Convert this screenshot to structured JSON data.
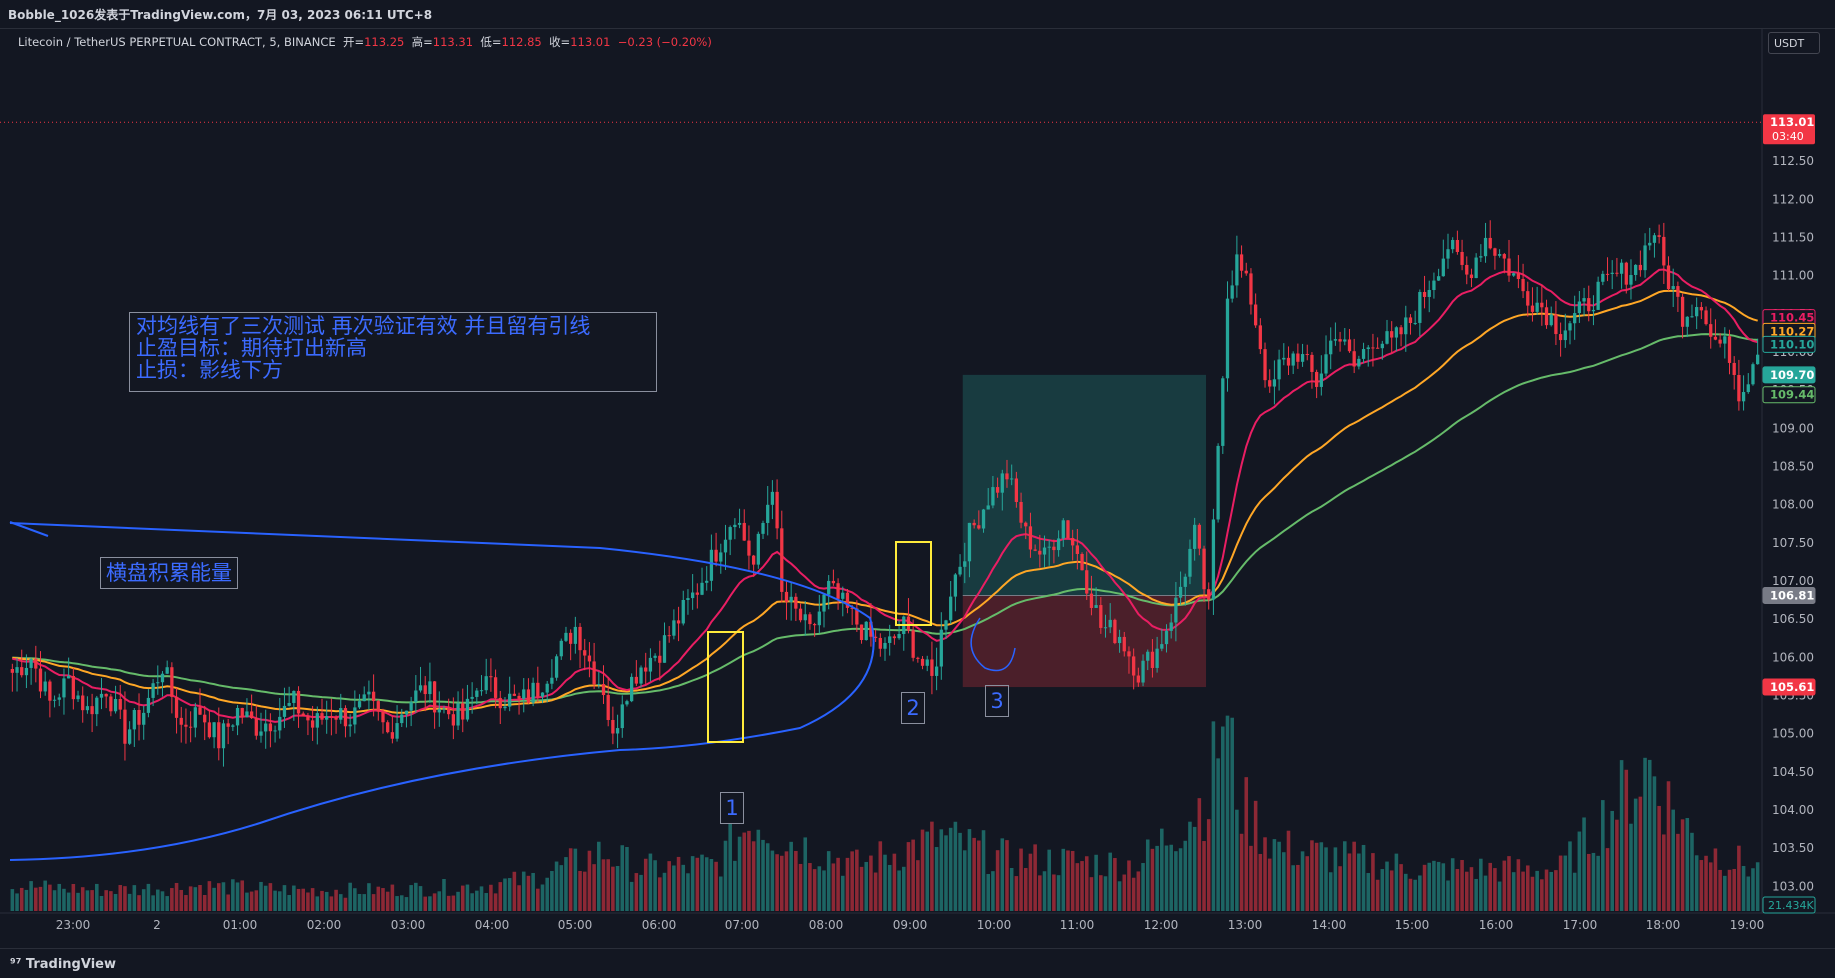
{
  "header": {
    "title": "Bobble_1026发表于TradingView.com，7月 03, 2023 06:11 UTC+8"
  },
  "legend": {
    "symbol": "Litecoin / TetherUS PERPETUAL CONTRACT, 5, BINANCE",
    "open_label": "开=",
    "open": "113.25",
    "high_label": "高=",
    "high": "113.31",
    "low_label": "低=",
    "low": "112.85",
    "close_label": "收=",
    "close": "113.01",
    "change": "−0.23 (−0.20%)"
  },
  "currency": "USDT",
  "annotations": {
    "main_note": [
      "对均线有了三次测试 再次验证有效 并且留有引线",
      "止盈目标：期待打出新高",
      "止损：影线下方"
    ],
    "range_note": "横盘积累能量",
    "labels": [
      "1",
      "2",
      "3"
    ]
  },
  "footer": {
    "brand": "TradingView"
  },
  "colors": {
    "background": "#131722",
    "up": "#26a69a",
    "down": "#f23645",
    "ma_fast": "#e91e63",
    "ma_mid": "#ffa726",
    "ma_slow": "#66bb6a",
    "vwap_band": "#2962ff",
    "note_text": "#2962ff",
    "highlight_box": "#ffeb3b"
  },
  "chart_data": {
    "type": "candlestick",
    "xlabel": "",
    "ylabel": "",
    "x_ticks": [
      "23:00",
      "2",
      "01:00",
      "02:00",
      "03:00",
      "04:00",
      "05:00",
      "06:00",
      "07:00",
      "08:00",
      "09:00",
      "10:00",
      "11:00",
      "12:00",
      "13:00",
      "14:00",
      "15:00",
      "16:00",
      "17:00",
      "18:00",
      "19:00"
    ],
    "y_ticks": [
      "103.00",
      "103.50",
      "104.00",
      "104.50",
      "105.00",
      "105.50",
      "106.00",
      "106.50",
      "107.00",
      "107.50",
      "108.00",
      "108.50",
      "109.00",
      "109.50",
      "110.00",
      "110.50",
      "111.00",
      "111.50",
      "112.00",
      "112.50"
    ],
    "ylim": [
      102.65,
      113.55
    ],
    "last_price": {
      "value": "113.01",
      "countdown": "03:40"
    },
    "price_labels": [
      {
        "value": "110.45",
        "color": "#e91e63"
      },
      {
        "value": "110.27",
        "color": "#ffa726"
      },
      {
        "value": "110.10",
        "color": "#26a69a"
      },
      {
        "value": "109.70",
        "color": "#26a69a"
      },
      {
        "value": "109.44",
        "color": "#66bb6a"
      },
      {
        "value": "106.81",
        "color": "#787b86"
      },
      {
        "value": "105.61",
        "color": "#f23645"
      }
    ],
    "volume_label": "21.434K",
    "position": {
      "entry": 106.81,
      "target": 109.7,
      "stop": 105.61
    },
    "anchors": [
      [
        0,
        105.8
      ],
      [
        4,
        106.0
      ],
      [
        8,
        105.4
      ],
      [
        12,
        105.7
      ],
      [
        16,
        105.3
      ],
      [
        20,
        105.6
      ],
      [
        24,
        105.0
      ],
      [
        28,
        105.3
      ],
      [
        32,
        105.9
      ],
      [
        36,
        105.1
      ],
      [
        40,
        105.3
      ],
      [
        44,
        104.9
      ],
      [
        48,
        105.3
      ],
      [
        52,
        105.1
      ],
      [
        56,
        105.2
      ],
      [
        60,
        105.4
      ],
      [
        64,
        105.1
      ],
      [
        68,
        105.3
      ],
      [
        72,
        105.2
      ],
      [
        76,
        105.4
      ],
      [
        80,
        105.0
      ],
      [
        84,
        105.4
      ],
      [
        88,
        105.6
      ],
      [
        92,
        105.3
      ],
      [
        96,
        105.2
      ],
      [
        100,
        105.7
      ],
      [
        104,
        105.5
      ],
      [
        108,
        105.4
      ],
      [
        112,
        105.6
      ],
      [
        116,
        106.0
      ],
      [
        120,
        106.4
      ],
      [
        124,
        105.8
      ],
      [
        126,
        105.6
      ],
      [
        128,
        104.9
      ],
      [
        130,
        105.5
      ],
      [
        134,
        105.9
      ],
      [
        138,
        106.1
      ],
      [
        142,
        106.5
      ],
      [
        146,
        106.9
      ],
      [
        150,
        107.4
      ],
      [
        154,
        107.9
      ],
      [
        158,
        107.2
      ],
      [
        162,
        108.3
      ],
      [
        164,
        106.8
      ],
      [
        168,
        106.5
      ],
      [
        170,
        106.3
      ],
      [
        174,
        106.9
      ],
      [
        178,
        106.6
      ],
      [
        182,
        106.3
      ],
      [
        186,
        106.1
      ],
      [
        190,
        106.4
      ],
      [
        194,
        105.9
      ],
      [
        196,
        105.7
      ],
      [
        200,
        106.9
      ],
      [
        204,
        107.6
      ],
      [
        208,
        108.1
      ],
      [
        212,
        108.4
      ],
      [
        216,
        107.6
      ],
      [
        220,
        107.3
      ],
      [
        224,
        107.8
      ],
      [
        228,
        107.2
      ],
      [
        232,
        106.4
      ],
      [
        236,
        106.3
      ],
      [
        240,
        105.8
      ],
      [
        244,
        106.1
      ],
      [
        248,
        106.7
      ],
      [
        252,
        107.6
      ],
      [
        255,
        106.6
      ],
      [
        257,
        108.8
      ],
      [
        259,
        110.8
      ],
      [
        261,
        111.2
      ],
      [
        264,
        110.7
      ],
      [
        266,
        110.1
      ],
      [
        268,
        109.4
      ],
      [
        270,
        109.8
      ],
      [
        274,
        110.0
      ],
      [
        278,
        109.6
      ],
      [
        282,
        110.3
      ],
      [
        286,
        109.8
      ],
      [
        290,
        110.2
      ],
      [
        294,
        110.1
      ],
      [
        298,
        110.4
      ],
      [
        302,
        110.9
      ],
      [
        306,
        111.4
      ],
      [
        310,
        111.0
      ],
      [
        314,
        111.5
      ],
      [
        318,
        111.2
      ],
      [
        322,
        110.8
      ],
      [
        326,
        110.6
      ],
      [
        330,
        110.3
      ],
      [
        334,
        110.5
      ],
      [
        338,
        110.8
      ],
      [
        342,
        111.0
      ],
      [
        346,
        111.1
      ],
      [
        350,
        111.6
      ],
      [
        352,
        111.1
      ],
      [
        354,
        110.8
      ],
      [
        356,
        110.5
      ],
      [
        360,
        110.7
      ],
      [
        362,
        110.2
      ],
      [
        366,
        110.0
      ],
      [
        368,
        109.5
      ],
      [
        370,
        109.7
      ],
      [
        372,
        110.1
      ]
    ],
    "volume_anchors": [
      [
        0,
        0.12
      ],
      [
        20,
        0.1
      ],
      [
        40,
        0.12
      ],
      [
        60,
        0.1
      ],
      [
        80,
        0.1
      ],
      [
        100,
        0.12
      ],
      [
        110,
        0.15
      ],
      [
        126,
        0.28
      ],
      [
        134,
        0.2
      ],
      [
        150,
        0.22
      ],
      [
        158,
        0.45
      ],
      [
        164,
        0.35
      ],
      [
        180,
        0.22
      ],
      [
        198,
        0.35
      ],
      [
        212,
        0.25
      ],
      [
        240,
        0.22
      ],
      [
        255,
        0.55
      ],
      [
        258,
        0.95
      ],
      [
        262,
        0.5
      ],
      [
        270,
        0.3
      ],
      [
        300,
        0.2
      ],
      [
        330,
        0.2
      ],
      [
        349,
        0.7
      ],
      [
        352,
        0.55
      ],
      [
        360,
        0.3
      ],
      [
        372,
        0.2
      ]
    ]
  }
}
